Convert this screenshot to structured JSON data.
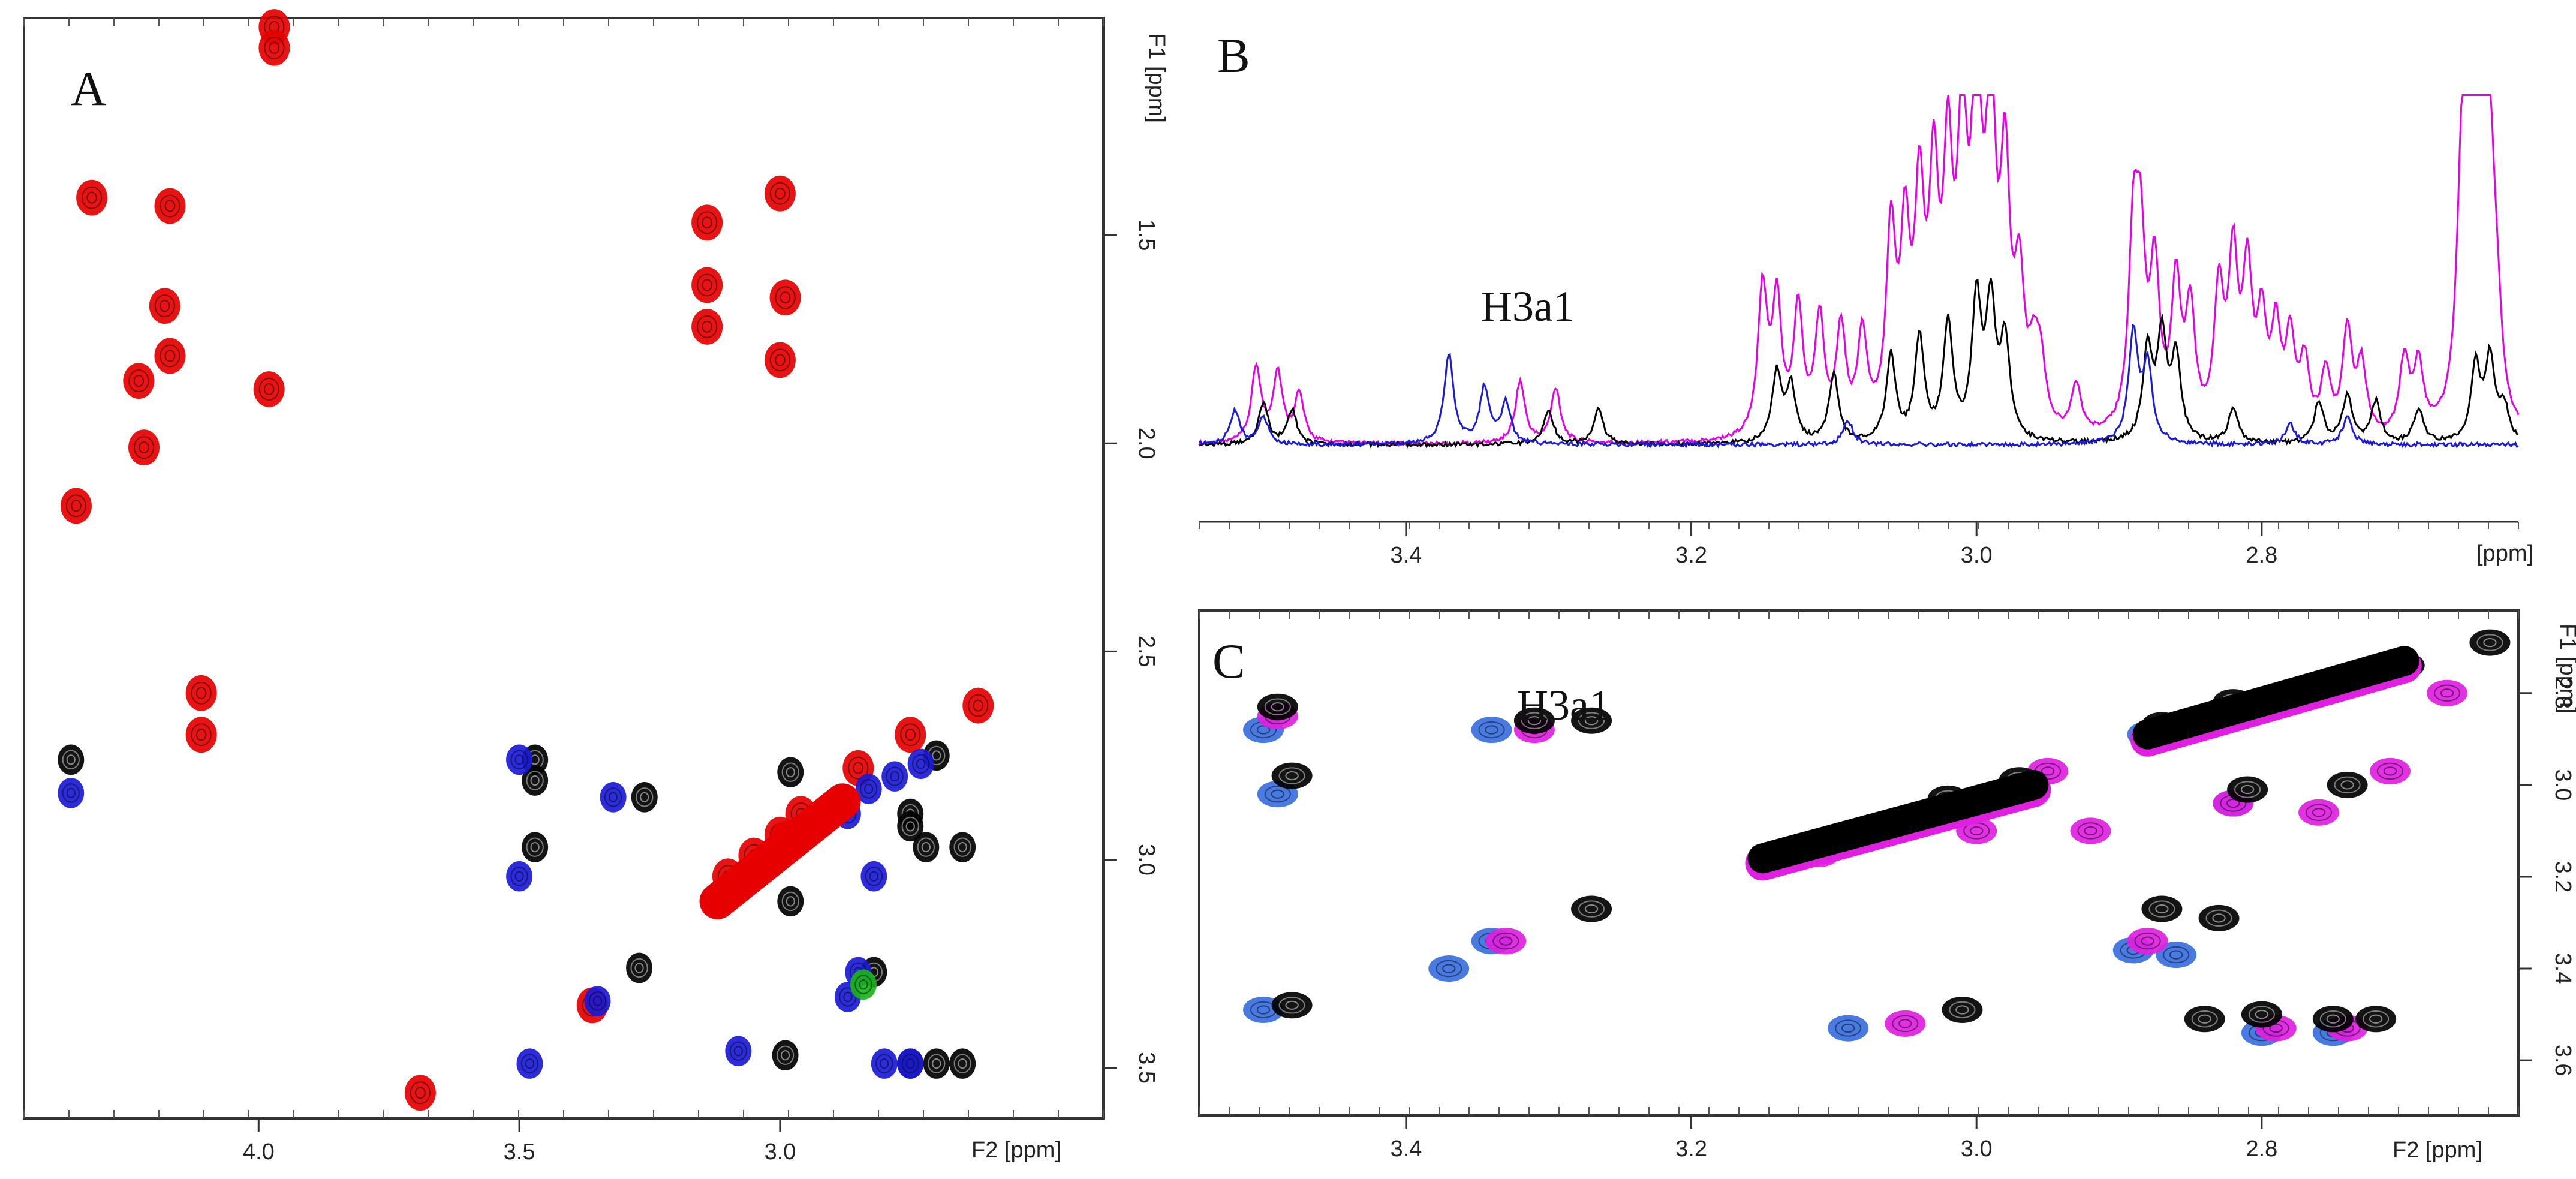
{
  "chart_data": [
    {
      "type": "scatter",
      "panel": "A",
      "description_label": "A",
      "xlabel": "F2 [ppm]",
      "ylabel": "F1 [ppm]",
      "xlim": [
        4.45,
        2.38
      ],
      "ylim": [
        1.0,
        3.6
      ],
      "x_ticks": [
        {
          "v": 4.0,
          "t": "4.0"
        },
        {
          "v": 3.5,
          "t": "3.5"
        },
        {
          "v": 3.0,
          "t": "3.0"
        }
      ],
      "y_ticks": [
        {
          "v": 1.5,
          "t": "1.5"
        },
        {
          "v": 2.0,
          "t": "2.0"
        },
        {
          "v": 2.5,
          "t": "2.5"
        },
        {
          "v": 3.0,
          "t": "3.0"
        },
        {
          "v": 3.5,
          "t": "3.5"
        }
      ],
      "series": [
        {
          "name": "red",
          "color": "#e60000",
          "points": [
            [
              3.97,
              1.0
            ],
            [
              3.97,
              1.05
            ],
            [
              4.32,
              1.41
            ],
            [
              4.17,
              1.43
            ],
            [
              4.18,
              1.67
            ],
            [
              4.17,
              1.79
            ],
            [
              4.23,
              1.85
            ],
            [
              4.22,
              2.01
            ],
            [
              4.35,
              2.15
            ],
            [
              3.98,
              1.87
            ],
            [
              3.14,
              1.47
            ],
            [
              3.14,
              1.62
            ],
            [
              3.14,
              1.72
            ],
            [
              3.0,
              1.4
            ],
            [
              2.99,
              1.65
            ],
            [
              3.0,
              1.8
            ],
            [
              4.11,
              2.6
            ],
            [
              4.11,
              2.7
            ],
            [
              3.1,
              3.04
            ],
            [
              3.05,
              2.99
            ],
            [
              3.0,
              2.94
            ],
            [
              2.96,
              2.89
            ],
            [
              2.85,
              2.78
            ],
            [
              2.75,
              2.7
            ],
            [
              2.62,
              2.63
            ],
            [
              3.12,
              3.1
            ],
            [
              2.99,
              2.95
            ],
            [
              3.69,
              3.56
            ],
            [
              3.36,
              3.35
            ]
          ]
        },
        {
          "name": "black",
          "color": "#000000",
          "points": [
            [
              4.36,
              2.76
            ],
            [
              3.47,
              2.76
            ],
            [
              3.47,
              2.81
            ],
            [
              3.26,
              2.85
            ],
            [
              3.47,
              2.97
            ],
            [
              3.27,
              3.26
            ],
            [
              2.98,
              2.79
            ],
            [
              2.7,
              2.75
            ],
            [
              2.75,
              2.89
            ],
            [
              2.75,
              2.92
            ],
            [
              2.72,
              2.97
            ],
            [
              2.65,
              2.97
            ],
            [
              2.82,
              3.27
            ],
            [
              2.99,
              3.47
            ],
            [
              2.75,
              3.49
            ],
            [
              2.7,
              3.49
            ],
            [
              2.65,
              3.49
            ],
            [
              2.98,
              3.1
            ]
          ]
        },
        {
          "name": "blue",
          "color": "#1a1ad8",
          "points": [
            [
              4.36,
              2.84
            ],
            [
              3.5,
              2.76
            ],
            [
              3.32,
              2.85
            ],
            [
              3.5,
              3.04
            ],
            [
              3.35,
              3.34
            ],
            [
              3.48,
              3.49
            ],
            [
              3.08,
              3.46
            ],
            [
              2.87,
              2.89
            ],
            [
              2.83,
              2.83
            ],
            [
              2.78,
              2.8
            ],
            [
              2.73,
              2.77
            ],
            [
              2.85,
              3.27
            ],
            [
              2.87,
              3.33
            ],
            [
              2.8,
              3.49
            ],
            [
              2.75,
              3.49
            ],
            [
              2.82,
              3.04
            ]
          ]
        },
        {
          "name": "green",
          "color": "#19b419",
          "points": [
            [
              2.84,
              3.3
            ]
          ]
        }
      ]
    },
    {
      "type": "line",
      "panel": "B",
      "description_label": "B",
      "annotation": "H3a1",
      "xlabel": "[ppm]",
      "xlim": [
        3.545,
        2.62
      ],
      "x_ticks": [
        {
          "v": 3.4,
          "t": "3.4"
        },
        {
          "v": 3.2,
          "t": "3.2"
        },
        {
          "v": 3.0,
          "t": "3.0"
        },
        {
          "v": 2.8,
          "t": "2.8"
        }
      ],
      "series": [
        {
          "name": "magenta",
          "color": "#e600e6",
          "peaks": [
            [
              3.505,
              0.22
            ],
            [
              3.49,
              0.2
            ],
            [
              3.475,
              0.14
            ],
            [
              3.32,
              0.18
            ],
            [
              3.295,
              0.16
            ],
            [
              3.15,
              0.42
            ],
            [
              3.14,
              0.38
            ],
            [
              3.125,
              0.36
            ],
            [
              3.11,
              0.33
            ],
            [
              3.095,
              0.3
            ],
            [
              3.08,
              0.28
            ],
            [
              3.06,
              0.56
            ],
            [
              3.05,
              0.52
            ],
            [
              3.04,
              0.62
            ],
            [
              3.03,
              0.66
            ],
            [
              3.02,
              0.7
            ],
            [
              3.01,
              0.8
            ],
            [
              3.0,
              1.0
            ],
            [
              2.99,
              0.9
            ],
            [
              2.98,
              0.7
            ],
            [
              2.97,
              0.4
            ],
            [
              2.96,
              0.18
            ],
            [
              2.955,
              0.17
            ],
            [
              2.93,
              0.14
            ],
            [
              2.89,
              0.52
            ],
            [
              2.885,
              0.48
            ],
            [
              2.875,
              0.45
            ],
            [
              2.86,
              0.42
            ],
            [
              2.85,
              0.34
            ],
            [
              2.83,
              0.4
            ],
            [
              2.82,
              0.48
            ],
            [
              2.81,
              0.44
            ],
            [
              2.8,
              0.3
            ],
            [
              2.79,
              0.28
            ],
            [
              2.78,
              0.26
            ],
            [
              2.77,
              0.2
            ],
            [
              2.755,
              0.18
            ],
            [
              2.74,
              0.3
            ],
            [
              2.73,
              0.2
            ],
            [
              2.7,
              0.22
            ],
            [
              2.69,
              0.2
            ],
            [
              2.66,
              0.5
            ],
            [
              2.655,
              0.82
            ],
            [
              2.65,
              0.68
            ],
            [
              2.645,
              0.58
            ],
            [
              2.64,
              0.6
            ],
            [
              2.635,
              0.22
            ]
          ]
        },
        {
          "name": "black",
          "color": "#000000",
          "peaks": [
            [
              3.5,
              0.12
            ],
            [
              3.48,
              0.1
            ],
            [
              3.3,
              0.1
            ],
            [
              3.265,
              0.1
            ],
            [
              3.14,
              0.2
            ],
            [
              3.13,
              0.16
            ],
            [
              3.1,
              0.2
            ],
            [
              3.06,
              0.25
            ],
            [
              3.04,
              0.3
            ],
            [
              3.02,
              0.34
            ],
            [
              3.0,
              0.4
            ],
            [
              2.99,
              0.38
            ],
            [
              2.98,
              0.28
            ],
            [
              2.88,
              0.26
            ],
            [
              2.87,
              0.3
            ],
            [
              2.86,
              0.24
            ],
            [
              2.82,
              0.1
            ],
            [
              2.76,
              0.12
            ],
            [
              2.74,
              0.14
            ],
            [
              2.72,
              0.12
            ],
            [
              2.69,
              0.1
            ],
            [
              2.65,
              0.22
            ],
            [
              2.64,
              0.24
            ],
            [
              2.63,
              0.1
            ]
          ]
        },
        {
          "name": "blue",
          "color": "#1a1ad8",
          "peaks": [
            [
              3.52,
              0.1
            ],
            [
              3.5,
              0.08
            ],
            [
              3.37,
              0.26
            ],
            [
              3.345,
              0.16
            ],
            [
              3.33,
              0.12
            ],
            [
              3.09,
              0.07
            ],
            [
              2.89,
              0.32
            ],
            [
              2.88,
              0.22
            ],
            [
              2.78,
              0.06
            ],
            [
              2.74,
              0.08
            ]
          ]
        }
      ]
    },
    {
      "type": "scatter",
      "panel": "C",
      "description_label": "C",
      "annotation": "H3a1",
      "xlabel": "F2 [ppm]",
      "ylabel": "F1 [ppm]",
      "xlim": [
        3.545,
        2.62
      ],
      "ylim": [
        2.62,
        3.72
      ],
      "x_ticks": [
        {
          "v": 3.4,
          "t": "3.4"
        },
        {
          "v": 3.2,
          "t": "3.2"
        },
        {
          "v": 3.0,
          "t": "3.0"
        },
        {
          "v": 2.8,
          "t": "2.8"
        }
      ],
      "y_ticks": [
        {
          "v": 2.8,
          "t": "2.8"
        },
        {
          "v": 3.0,
          "t": "3.0"
        },
        {
          "v": 3.2,
          "t": "3.2"
        },
        {
          "v": 3.4,
          "t": "3.4"
        },
        {
          "v": 3.6,
          "t": "3.6"
        }
      ],
      "series": [
        {
          "name": "blue",
          "color": "#3a6fe0",
          "points": [
            [
              3.5,
              2.88
            ],
            [
              3.49,
              3.02
            ],
            [
              3.5,
              3.49
            ],
            [
              3.34,
              2.88
            ],
            [
              3.34,
              3.34
            ],
            [
              3.37,
              3.4
            ],
            [
              3.09,
              3.53
            ],
            [
              2.89,
              3.36
            ],
            [
              2.86,
              3.37
            ],
            [
              2.88,
              2.89
            ],
            [
              2.83,
              2.86
            ],
            [
              2.8,
              3.54
            ],
            [
              2.75,
              3.54
            ],
            [
              2.82,
              3.04
            ]
          ]
        },
        {
          "name": "magenta",
          "color": "#e020e0",
          "points": [
            [
              3.49,
              2.85
            ],
            [
              3.31,
              2.88
            ],
            [
              3.33,
              3.34
            ],
            [
              3.05,
              3.52
            ],
            [
              3.0,
              3.1
            ],
            [
              2.95,
              2.97
            ],
            [
              2.92,
              3.1
            ],
            [
              2.88,
              3.34
            ],
            [
              2.82,
              3.04
            ],
            [
              2.76,
              3.06
            ],
            [
              2.71,
              2.97
            ],
            [
              2.67,
              2.8
            ],
            [
              2.79,
              3.53
            ],
            [
              2.74,
              3.53
            ],
            [
              3.11,
              3.15
            ]
          ]
        },
        {
          "name": "black",
          "color": "#000000",
          "points": [
            [
              3.49,
              2.83
            ],
            [
              3.48,
              2.98
            ],
            [
              3.48,
              3.48
            ],
            [
              3.31,
              2.86
            ],
            [
              3.27,
              2.86
            ],
            [
              3.27,
              3.27
            ],
            [
              3.01,
              3.49
            ],
            [
              3.12,
              3.15
            ],
            [
              3.07,
              3.09
            ],
            [
              3.02,
              3.03
            ],
            [
              2.97,
              2.99
            ],
            [
              2.87,
              2.87
            ],
            [
              2.82,
              2.82
            ],
            [
              2.76,
              2.79
            ],
            [
              2.7,
              2.74
            ],
            [
              2.64,
              2.69
            ],
            [
              2.87,
              3.27
            ],
            [
              2.83,
              3.29
            ],
            [
              2.81,
              3.01
            ],
            [
              2.74,
              3.0
            ],
            [
              2.8,
              3.5
            ],
            [
              2.75,
              3.51
            ],
            [
              2.72,
              3.51
            ],
            [
              2.84,
              3.51
            ]
          ]
        }
      ]
    }
  ]
}
